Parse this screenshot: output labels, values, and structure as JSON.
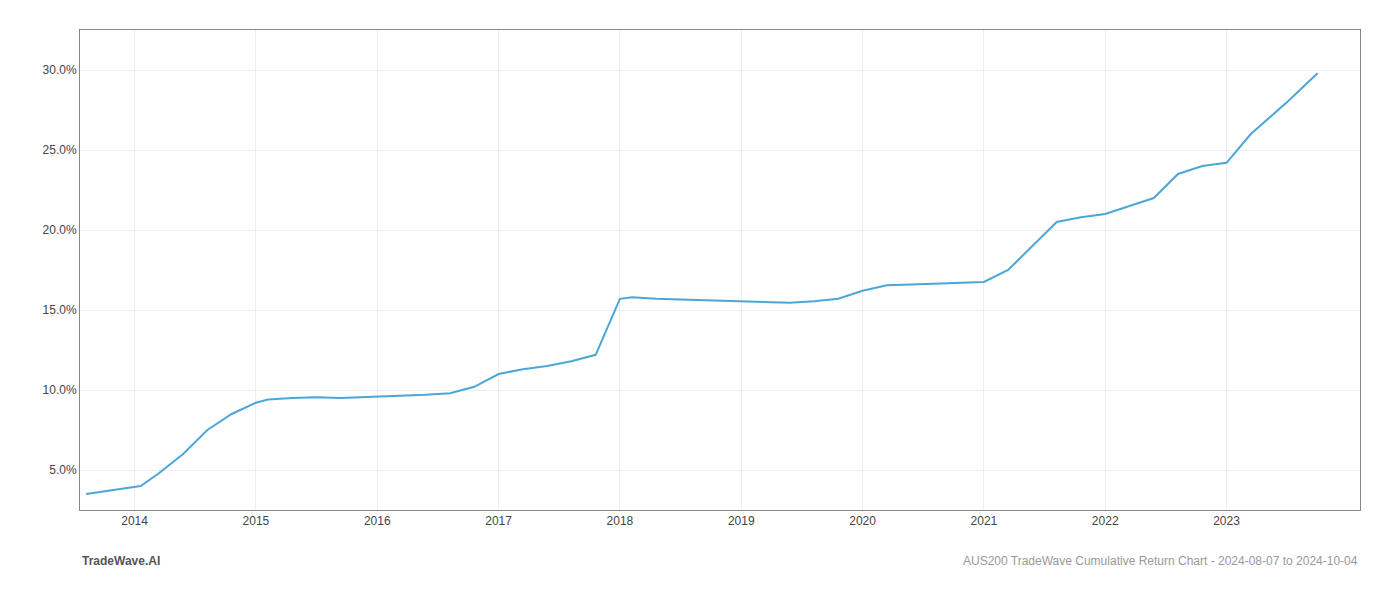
{
  "chart_data": {
    "type": "line",
    "x": [
      2013.6,
      2014.05,
      2014.2,
      2014.4,
      2014.6,
      2014.8,
      2015.0,
      2015.1,
      2015.3,
      2015.5,
      2015.7,
      2015.9,
      2016.0,
      2016.2,
      2016.4,
      2016.6,
      2016.8,
      2017.0,
      2017.2,
      2017.4,
      2017.6,
      2017.8,
      2018.0,
      2018.1,
      2018.2,
      2018.3,
      2018.5,
      2018.7,
      2018.9,
      2019.0,
      2019.2,
      2019.4,
      2019.6,
      2019.8,
      2020.0,
      2020.2,
      2020.4,
      2020.6,
      2020.8,
      2021.0,
      2021.2,
      2021.4,
      2021.6,
      2021.8,
      2022.0,
      2022.2,
      2022.4,
      2022.6,
      2022.8,
      2023.0,
      2023.2,
      2023.5,
      2023.75
    ],
    "values": [
      3.5,
      4.0,
      4.8,
      6.0,
      7.5,
      8.5,
      9.2,
      9.4,
      9.5,
      9.55,
      9.5,
      9.55,
      9.6,
      9.65,
      9.7,
      9.8,
      10.2,
      11.0,
      11.3,
      11.5,
      11.8,
      12.2,
      15.7,
      15.8,
      15.75,
      15.7,
      15.65,
      15.6,
      15.55,
      15.55,
      15.5,
      15.45,
      15.55,
      15.7,
      16.2,
      16.55,
      16.6,
      16.65,
      16.7,
      16.75,
      17.5,
      19.0,
      20.5,
      20.8,
      21.0,
      21.5,
      22.0,
      23.5,
      24.0,
      24.2,
      26.0,
      28.0,
      29.8
    ],
    "color": "#4da6d8",
    "xlim": [
      2013.55,
      2024.1
    ],
    "xticks": [
      2014,
      2015,
      2016,
      2017,
      2018,
      2019,
      2020,
      2021,
      2022,
      2023
    ],
    "ylim": [
      2.5,
      32.5
    ],
    "yticks": [
      {
        "value": 5.0,
        "label": "5.0%"
      },
      {
        "value": 10.0,
        "label": "10.0%"
      },
      {
        "value": 15.0,
        "label": "15.0%"
      },
      {
        "value": 20.0,
        "label": "20.0%"
      },
      {
        "value": 25.0,
        "label": "25.0%"
      },
      {
        "value": 30.0,
        "label": "30.0%"
      }
    ],
    "grid": true,
    "annotations": [
      "TradeWave.AI",
      "AUS200 TradeWave Cumulative Return Chart - 2024-08-07 to 2024-10-04"
    ]
  }
}
